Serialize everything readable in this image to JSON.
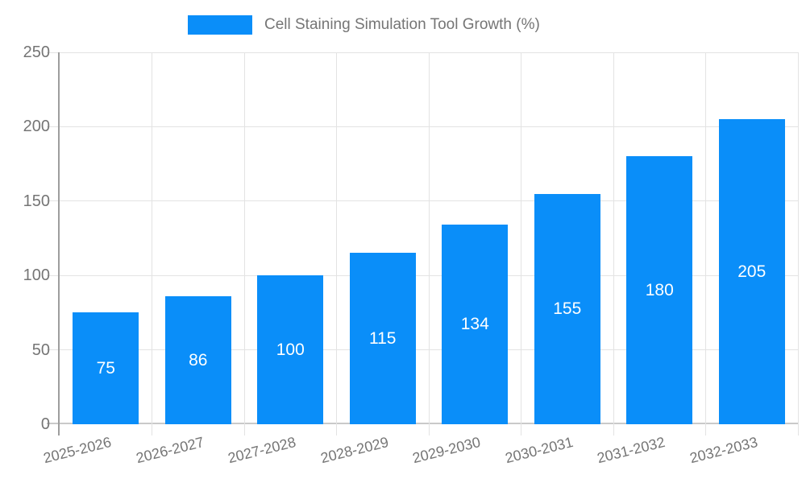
{
  "legend": {
    "label": "Cell Staining Simulation Tool Growth (%)"
  },
  "colors": {
    "bar": "#0a8ef9",
    "grid": "#e3e3e3",
    "baseline": "#c9c9c9",
    "axis_line": "#9e9e9e",
    "tick_text": "#757575",
    "legend_text": "#757575",
    "value_text": "#ffffff",
    "background": "#ffffff"
  },
  "chart_data": {
    "type": "bar",
    "title": "Cell Staining Simulation Tool Growth (%)",
    "categories": [
      "2025-2026",
      "2026-2027",
      "2027-2028",
      "2028-2029",
      "2029-2030",
      "2030-2031",
      "2031-2032",
      "2032-2033"
    ],
    "values": [
      75,
      86,
      100,
      115,
      134,
      155,
      180,
      205
    ],
    "value_labels": [
      75,
      86,
      100,
      115,
      134,
      155,
      180,
      205
    ],
    "value_label_position": "inside-center",
    "xlabel": "",
    "ylabel": "",
    "ylim": [
      0,
      250
    ],
    "yticks": [
      0,
      50,
      100,
      150,
      200,
      250
    ],
    "grid": "on",
    "legend_position": "top"
  }
}
